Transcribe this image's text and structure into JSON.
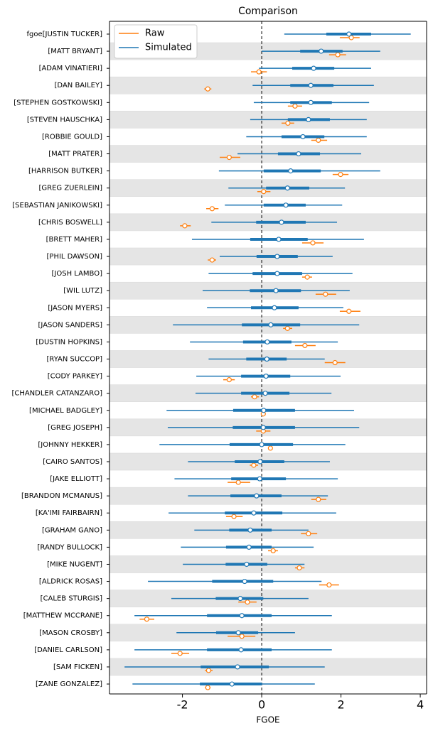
{
  "chart_data": {
    "type": "forest",
    "title": "Comparison",
    "xlabel": "FGOE",
    "xlim": [
      -3.84,
      4.16
    ],
    "xticks": [
      -2,
      0,
      2,
      4
    ],
    "refline": 0,
    "categories": [
      "fgoe[JUSTIN TUCKER]",
      "[MATT BRYANT]",
      "[ADAM VINATIERI]",
      "[DAN BAILEY]",
      "[STEPHEN GOSTKOWSKI]",
      "[STEVEN HAUSCHKA]",
      "[ROBBIE GOULD]",
      "[MATT PRATER]",
      "[HARRISON BUTKER]",
      "[GREG ZUERLEIN]",
      "[SEBASTIAN JANIKOWSKI]",
      "[CHRIS BOSWELL]",
      "[BRETT MAHER]",
      "[PHIL DAWSON]",
      "[JOSH LAMBO]",
      "[WIL LUTZ]",
      "[JASON MYERS]",
      "[JASON SANDERS]",
      "[DUSTIN HOPKINS]",
      "[RYAN SUCCOP]",
      "[CODY PARKEY]",
      "[CHANDLER CATANZARO]",
      "[MICHAEL BADGLEY]",
      "[GREG JOSEPH]",
      "[JOHNNY HEKKER]",
      "[CAIRO SANTOS]",
      "[JAKE ELLIOTT]",
      "[BRANDON MCMANUS]",
      "[KA'IMI FAIRBAIRN]",
      "[GRAHAM GANO]",
      "[RANDY BULLOCK]",
      "[MIKE NUGENT]",
      "[ALDRICK ROSAS]",
      "[CALEB STURGIS]",
      "[MATTHEW MCCRANE]",
      "[MASON CROSBY]",
      "[DANIEL CARLSON]",
      "[SAM FICKEN]",
      "[ZANE GONZALEZ]"
    ],
    "series": [
      {
        "name": "Raw",
        "color": "#ff7f0e",
        "values": [
          2.26,
          1.92,
          -0.07,
          -1.36,
          0.84,
          0.66,
          1.43,
          -0.82,
          1.99,
          0.05,
          -1.25,
          -1.94,
          1.29,
          -1.25,
          1.15,
          1.61,
          2.2,
          0.65,
          1.09,
          1.85,
          -0.82,
          -0.18,
          0.04,
          0.04,
          0.22,
          -0.2,
          -0.59,
          1.43,
          -0.7,
          1.18,
          0.29,
          0.95,
          1.7,
          -0.36,
          -2.9,
          -0.5,
          -2.06,
          -1.34,
          -1.36
        ],
        "lower": [
          1.97,
          1.7,
          -0.27,
          -1.45,
          0.66,
          0.5,
          1.25,
          -1.06,
          1.79,
          -0.11,
          -1.4,
          -2.06,
          1.02,
          -1.36,
          1.02,
          1.36,
          1.97,
          0.54,
          0.84,
          1.59,
          -0.97,
          -0.27,
          0,
          -0.14,
          0.22,
          -0.3,
          -0.86,
          1.25,
          -0.9,
          0.99,
          0.16,
          0.84,
          1.45,
          -0.59,
          -3.08,
          -0.86,
          -2.28,
          -1.43,
          -1.43
        ],
        "upper": [
          2.47,
          2.13,
          0.13,
          -1.27,
          1.02,
          0.82,
          1.65,
          -0.54,
          2.19,
          0.22,
          -1.09,
          -1.79,
          1.56,
          -1.15,
          1.27,
          1.88,
          2.49,
          0.77,
          1.36,
          2.11,
          -0.68,
          -0.07,
          0.07,
          0.22,
          0.22,
          -0.09,
          -0.29,
          1.63,
          -0.48,
          1.4,
          0.41,
          1.08,
          1.95,
          -0.13,
          -2.71,
          -0.16,
          -1.83,
          -1.24,
          -1.29
        ]
      },
      {
        "name": "Simulated",
        "color": "#1f77b4",
        "values": [
          2.2,
          1.5,
          1.31,
          1.24,
          1.24,
          1.18,
          1.04,
          0.93,
          0.73,
          0.65,
          0.61,
          0.5,
          0.43,
          0.39,
          0.39,
          0.36,
          0.32,
          0.23,
          0.14,
          0.13,
          0.11,
          0.09,
          0.05,
          0.04,
          0,
          -0.04,
          -0.05,
          -0.13,
          -0.2,
          -0.29,
          -0.32,
          -0.38,
          -0.43,
          -0.54,
          -0.5,
          -0.59,
          -0.52,
          -0.61,
          -0.75
        ],
        "inner_lower": [
          1.63,
          0.97,
          0.77,
          0.72,
          0.72,
          0.66,
          0.5,
          0.41,
          0.05,
          0.11,
          0.05,
          -0.14,
          -0.29,
          -0.13,
          -0.23,
          -0.3,
          -0.27,
          -0.5,
          -0.47,
          -0.39,
          -0.52,
          -0.52,
          -0.72,
          -0.73,
          -0.81,
          -0.68,
          -0.77,
          -0.79,
          -0.93,
          -0.82,
          -0.9,
          -0.91,
          -1.25,
          -1.16,
          -1.38,
          -1.15,
          -1.38,
          -1.54,
          -1.56
        ],
        "inner_upper": [
          2.76,
          2.04,
          1.83,
          1.81,
          1.77,
          1.72,
          1.58,
          1.47,
          1.49,
          1.2,
          1.11,
          1.11,
          1.16,
          0.91,
          1.02,
          0.99,
          0.93,
          0.97,
          0.75,
          0.63,
          0.72,
          0.7,
          0.84,
          0.84,
          0.79,
          0.57,
          0.61,
          0.5,
          0.52,
          0.25,
          0.25,
          0.14,
          0.29,
          0.04,
          0.25,
          -0.09,
          0.25,
          0.18,
          0
        ],
        "lower": [
          0.57,
          0,
          -0.07,
          -0.23,
          -0.2,
          -0.29,
          -0.39,
          -0.61,
          -1.08,
          -0.84,
          -0.93,
          -1.27,
          -1.76,
          -1.06,
          -1.34,
          -1.49,
          -1.38,
          -2.24,
          -1.81,
          -1.34,
          -1.65,
          -1.67,
          -2.4,
          -2.37,
          -2.58,
          -1.86,
          -2.2,
          -1.86,
          -2.35,
          -1.7,
          -2.04,
          -1.99,
          -2.87,
          -2.28,
          -3.21,
          -2.15,
          -3.21,
          -3.46,
          -3.26
        ],
        "upper": [
          3.76,
          2.99,
          2.76,
          2.83,
          2.71,
          2.65,
          2.65,
          2.51,
          2.99,
          2.1,
          2.03,
          1.9,
          2.58,
          1.79,
          2.29,
          2.22,
          2.06,
          2.46,
          1.92,
          1.59,
          1.99,
          1.76,
          2.33,
          2.46,
          2.11,
          1.72,
          1.92,
          1.67,
          1.88,
          1.18,
          1.31,
          1.08,
          1.51,
          1.18,
          1.77,
          0.84,
          1.77,
          1.59,
          1.34
        ]
      }
    ]
  }
}
